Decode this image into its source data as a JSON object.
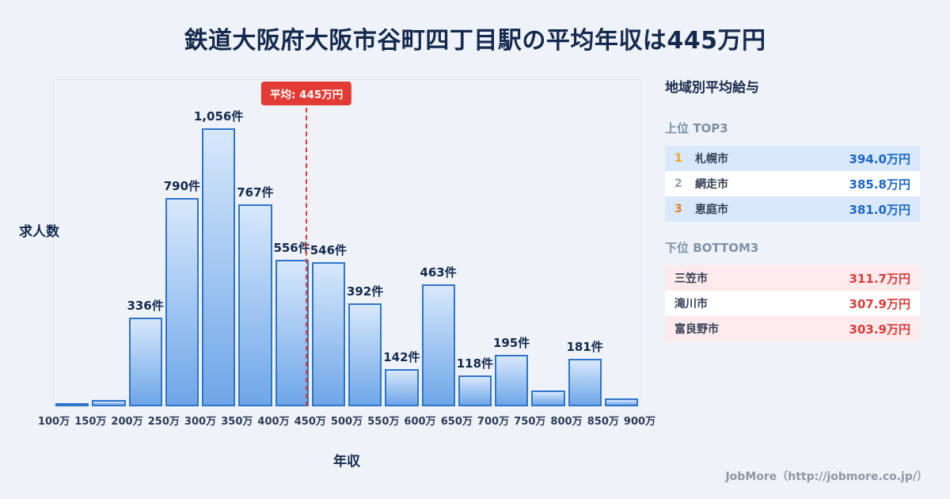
{
  "title": "鉄道大阪府大阪市谷町四丁目駅の平均年収は445万円",
  "chart_data": {
    "type": "bar",
    "title": "鉄道大阪府大阪市谷町四丁目駅の平均年収は445万円",
    "xlabel": "年収",
    "ylabel": "求人数",
    "tick_labels": [
      "100万",
      "150万",
      "200万",
      "250万",
      "300万",
      "350万",
      "400万",
      "450万",
      "500万",
      "550万",
      "600万",
      "650万",
      "700万",
      "750万",
      "800万",
      "850万",
      "900万"
    ],
    "xlim": [
      100,
      900
    ],
    "ylim": [
      0,
      1100
    ],
    "values": [
      9,
      24,
      336,
      790,
      1056,
      767,
      556,
      546,
      392,
      142,
      463,
      118,
      195,
      60,
      181,
      30
    ],
    "labels": [
      "",
      "",
      "336件",
      "790件",
      "1,056件",
      "767件",
      "556件",
      "546件",
      "392件",
      "142件",
      "463件",
      "118件",
      "195件",
      "",
      "181件",
      ""
    ],
    "average_line": {
      "x_value": 445,
      "label": "平均: 445万円"
    },
    "grid": false,
    "legend": false
  },
  "sidebar": {
    "title": "地域別平均給与",
    "top": {
      "heading": "上位 TOP3",
      "rows": [
        {
          "rank": "1",
          "name": "札幌市",
          "value": "394.0万円"
        },
        {
          "rank": "2",
          "name": "網走市",
          "value": "385.8万円"
        },
        {
          "rank": "3",
          "name": "恵庭市",
          "value": "381.0万円"
        }
      ]
    },
    "bottom": {
      "heading": "下位 BOTTOM3",
      "rows": [
        {
          "name": "三笠市",
          "value": "311.7万円"
        },
        {
          "name": "滝川市",
          "value": "307.9万円"
        },
        {
          "name": "富良野市",
          "value": "303.9万円"
        }
      ]
    }
  },
  "footer": "JobMore（http://jobmore.co.jp/）",
  "colors": {
    "background": "#eff3f9",
    "title_text": "#14294e",
    "bar_fill_top": "#d7e8fb",
    "bar_fill_bottom": "#6ea6e8",
    "bar_border": "#2f74cb",
    "average_red": "#e23a34",
    "top_row_bg": "#d9e8fb",
    "bottom_row_bg": "#fdeaec",
    "top_value_text": "#1b66c9",
    "bottom_value_text": "#d63e38",
    "rank1": "#f1a50e",
    "rank2": "#97a1ad",
    "rank3": "#e0822f",
    "heading_gray": "#7f90a6",
    "city_text": "#333f54",
    "footer_text": "#8e97a6"
  }
}
